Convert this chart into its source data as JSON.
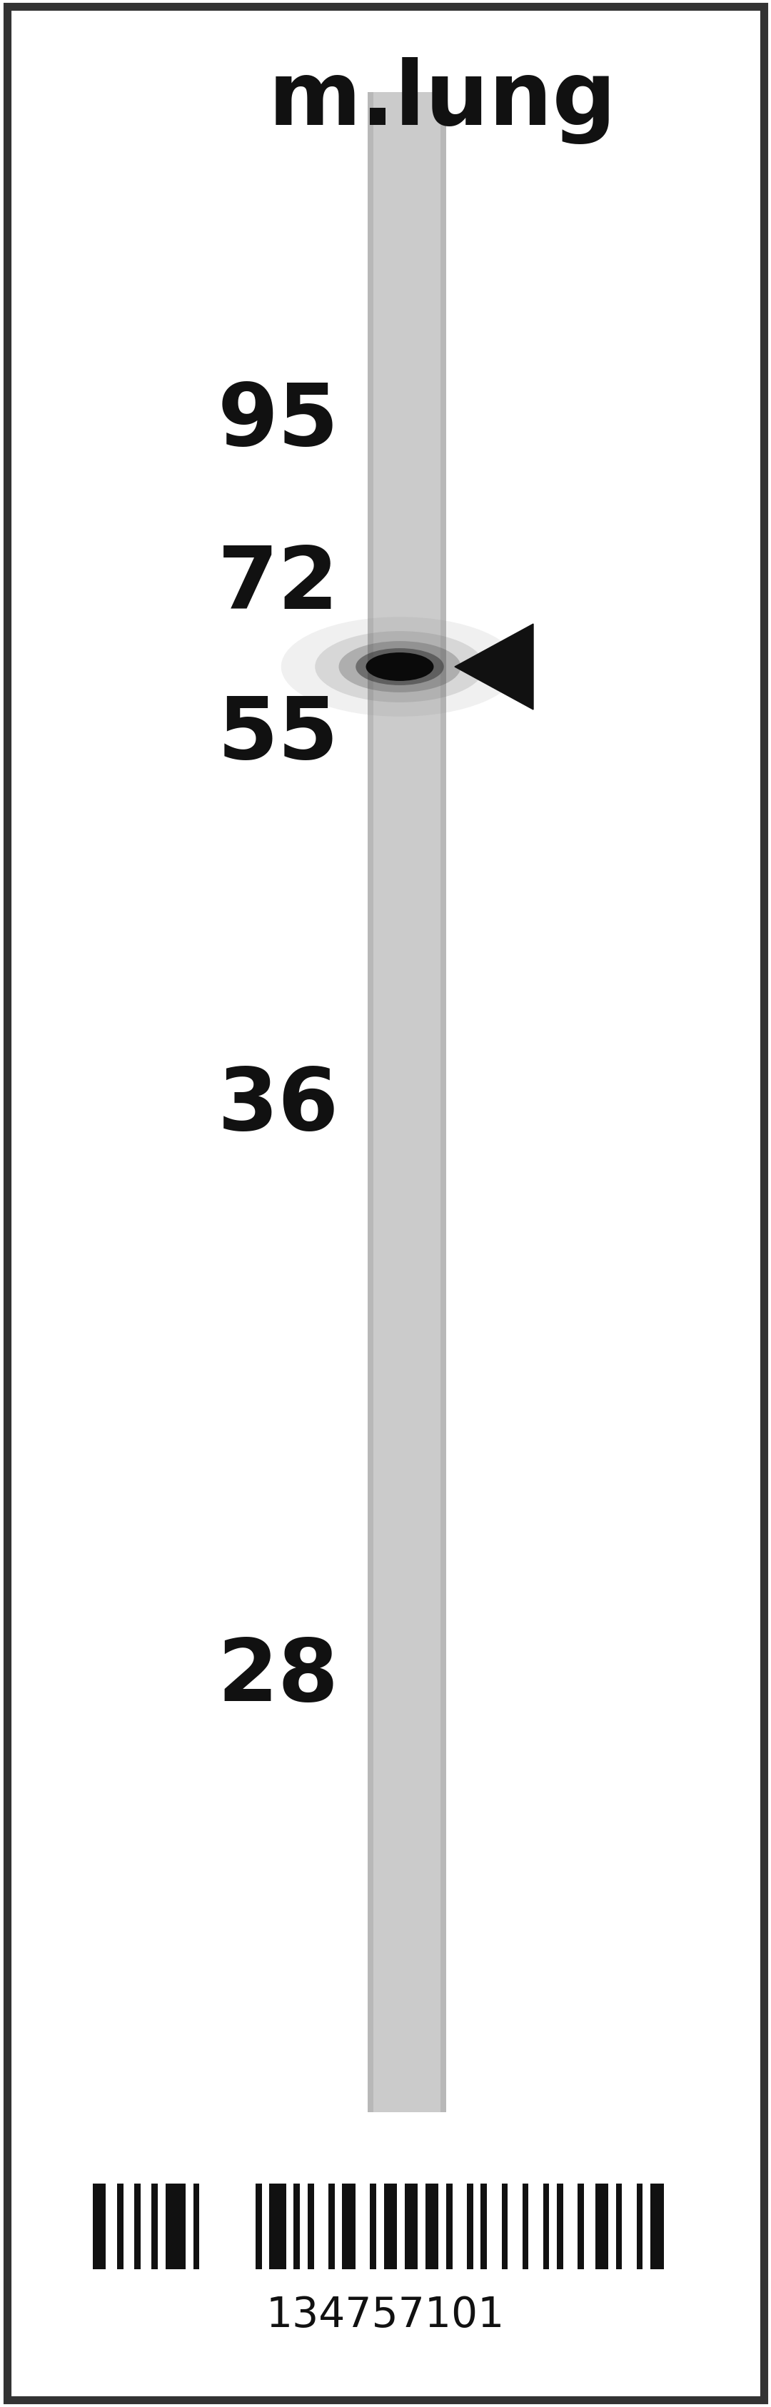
{
  "title": "m.lung",
  "mw_markers": [
    95,
    72,
    55,
    36,
    28
  ],
  "background_color": "#ffffff",
  "band_color": "#111111",
  "barcode_number": "134757101",
  "fig_width": 10.8,
  "fig_height": 33.73,
  "title_fontsize": 90,
  "marker_fontsize": 88,
  "barcode_fontsize": 42,
  "lane_color_light": "#d0d0d0",
  "lane_color_mid": "#c0c0c0",
  "border_color": "#333333",
  "border_lw": 8
}
